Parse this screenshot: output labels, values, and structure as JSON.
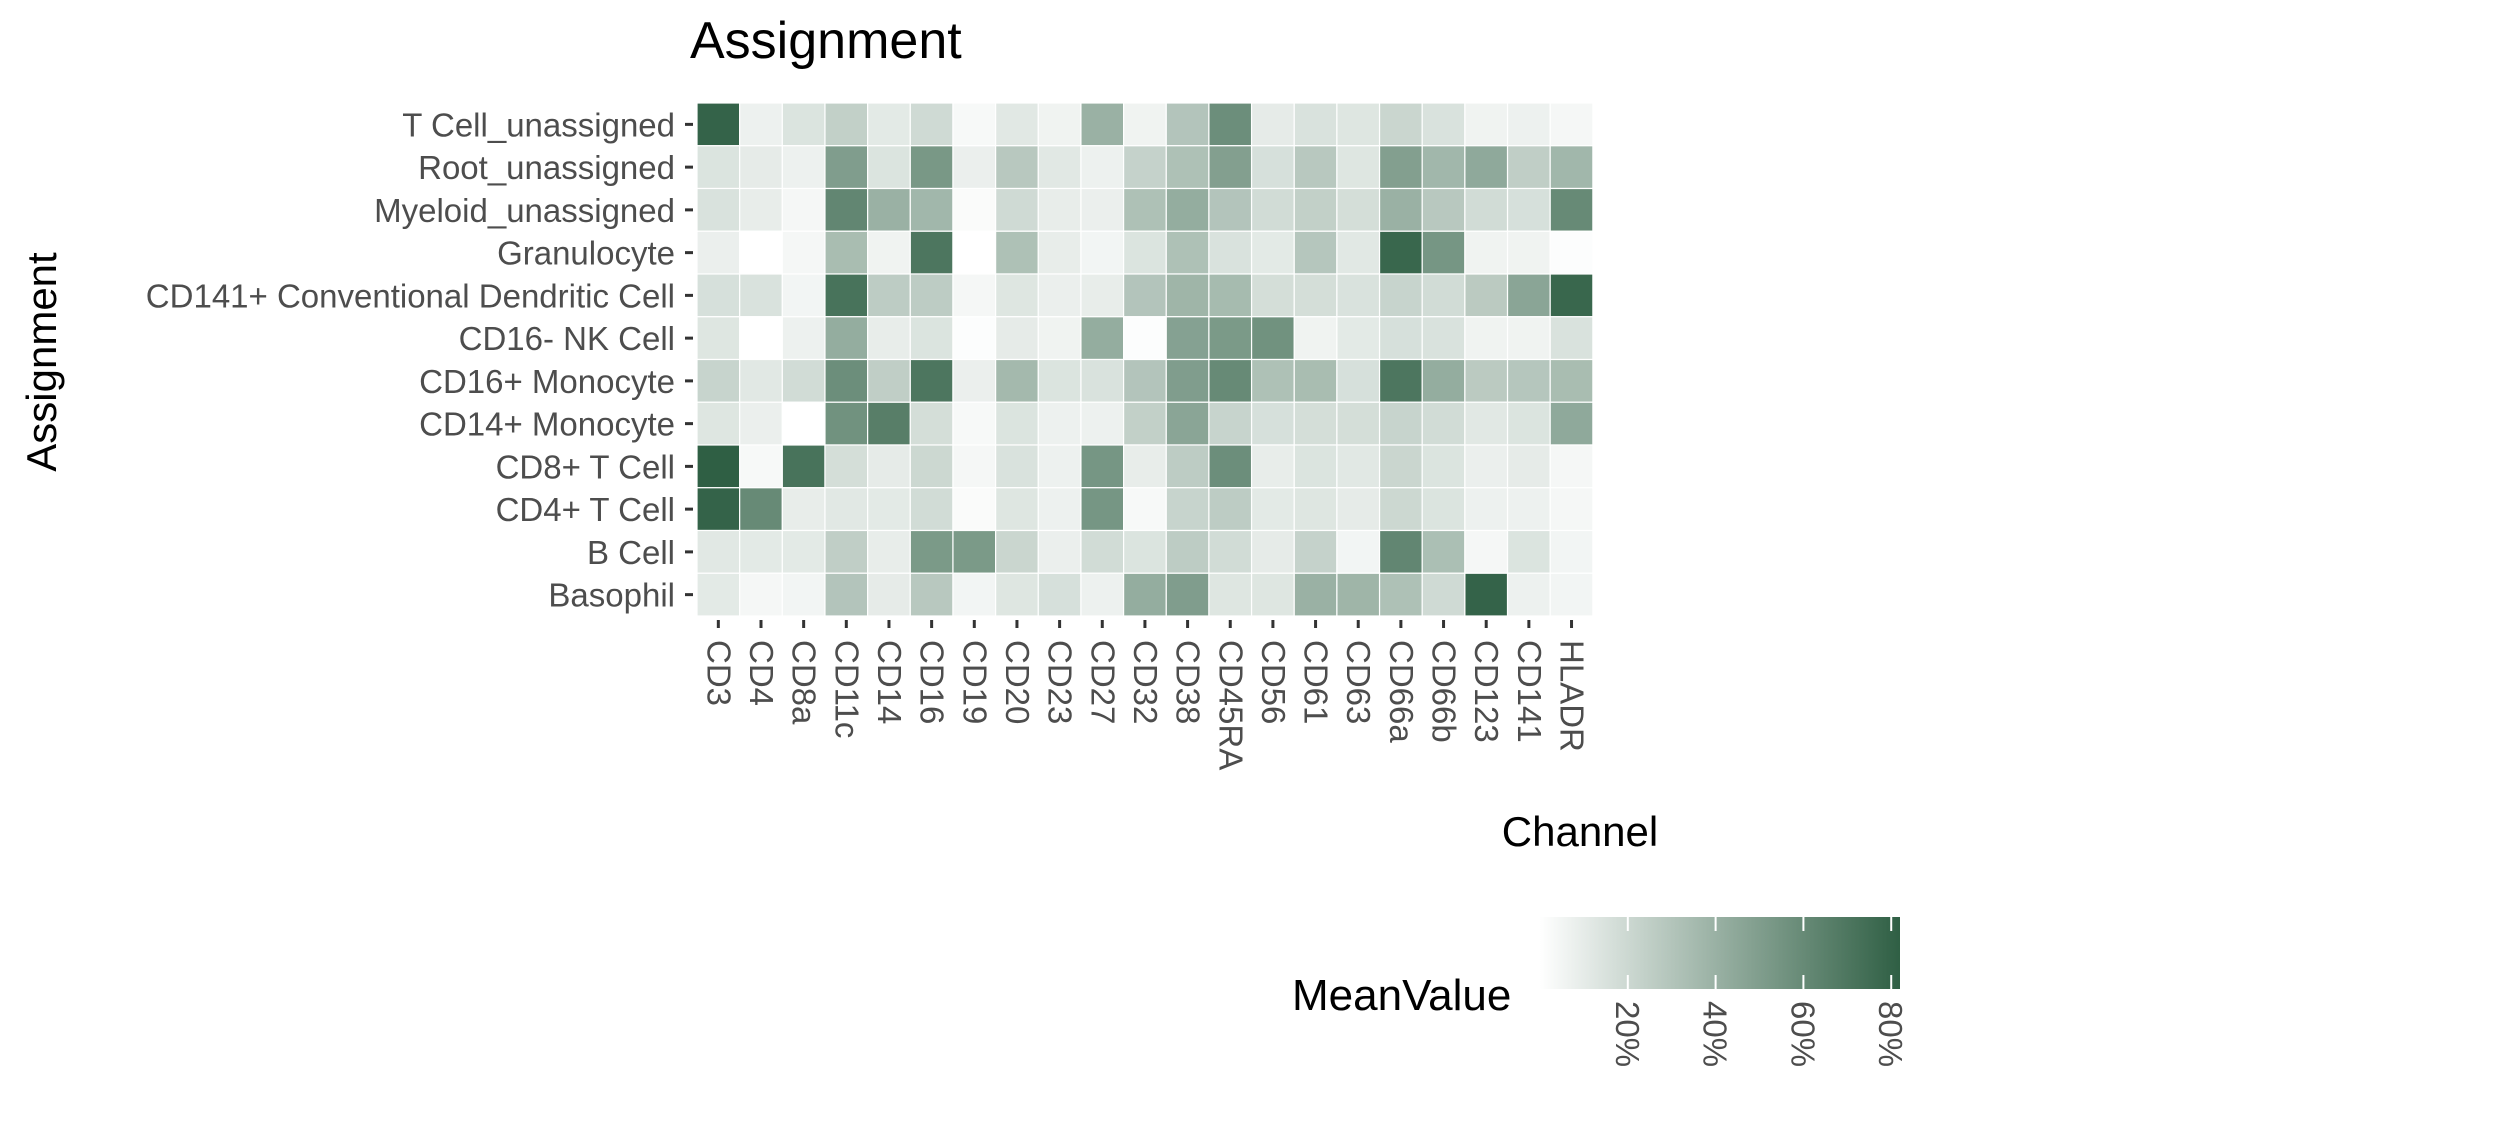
{
  "chart_data": {
    "type": "heatmap",
    "title": "Assignment",
    "xlabel": "Channel",
    "ylabel": "Assignment",
    "legend": {
      "title": "MeanValue",
      "placement": "bottom",
      "ticks": [
        0.2,
        0.4,
        0.6,
        0.8
      ],
      "tick_labels": [
        "20%",
        "40%",
        "60%",
        "80%"
      ],
      "range": [
        0.0,
        0.82
      ],
      "low_color": "#ffffff",
      "high_color": "#2f5f44"
    },
    "x": [
      "CD3",
      "CD4",
      "CD8a",
      "CD11c",
      "CD14",
      "CD16",
      "CD19",
      "CD20",
      "CD23",
      "CD27",
      "CD32",
      "CD38",
      "CD45RA",
      "CD56",
      "CD61",
      "CD63",
      "CD66a",
      "CD66b",
      "CD123",
      "CD141",
      "HLADR"
    ],
    "y": [
      "T Cell_unassigned",
      "Root_unassigned",
      "Myeloid_unassigned",
      "Granulocyte",
      "CD141+ Conventional Dendritic Cell",
      "CD16- NK Cell",
      "CD16+ Monocyte",
      "CD14+ Monocyte",
      "CD8+ T Cell",
      "CD4+ T Cell",
      "B Cell",
      "Basophil"
    ],
    "values": [
      [
        0.8,
        0.07,
        0.14,
        0.24,
        0.11,
        0.19,
        0.03,
        0.12,
        0.06,
        0.4,
        0.06,
        0.3,
        0.58,
        0.1,
        0.15,
        0.13,
        0.21,
        0.15,
        0.06,
        0.07,
        0.04
      ],
      [
        0.14,
        0.1,
        0.07,
        0.5,
        0.14,
        0.53,
        0.08,
        0.28,
        0.12,
        0.07,
        0.23,
        0.32,
        0.49,
        0.16,
        0.28,
        0.13,
        0.49,
        0.37,
        0.44,
        0.25,
        0.37
      ],
      [
        0.15,
        0.09,
        0.04,
        0.62,
        0.4,
        0.37,
        0.02,
        0.19,
        0.09,
        0.08,
        0.32,
        0.42,
        0.3,
        0.18,
        0.24,
        0.17,
        0.4,
        0.28,
        0.18,
        0.16,
        0.6
      ],
      [
        0.08,
        0.0,
        0.04,
        0.34,
        0.06,
        0.7,
        0.0,
        0.32,
        0.09,
        0.05,
        0.14,
        0.32,
        0.15,
        0.11,
        0.29,
        0.12,
        0.78,
        0.54,
        0.06,
        0.06,
        0.01
      ],
      [
        0.16,
        0.15,
        0.05,
        0.72,
        0.26,
        0.26,
        0.04,
        0.13,
        0.08,
        0.09,
        0.3,
        0.38,
        0.35,
        0.17,
        0.17,
        0.15,
        0.22,
        0.18,
        0.27,
        0.46,
        0.78
      ],
      [
        0.13,
        0.0,
        0.07,
        0.42,
        0.09,
        0.14,
        0.01,
        0.1,
        0.06,
        0.42,
        0.01,
        0.48,
        0.52,
        0.56,
        0.06,
        0.11,
        0.16,
        0.15,
        0.06,
        0.06,
        0.15
      ],
      [
        0.22,
        0.12,
        0.18,
        0.58,
        0.25,
        0.7,
        0.08,
        0.36,
        0.14,
        0.15,
        0.3,
        0.5,
        0.6,
        0.32,
        0.34,
        0.16,
        0.7,
        0.42,
        0.27,
        0.29,
        0.34
      ],
      [
        0.13,
        0.08,
        0.0,
        0.56,
        0.66,
        0.17,
        0.03,
        0.14,
        0.07,
        0.07,
        0.24,
        0.46,
        0.22,
        0.16,
        0.17,
        0.17,
        0.22,
        0.18,
        0.12,
        0.14,
        0.44
      ],
      [
        0.82,
        0.03,
        0.72,
        0.17,
        0.1,
        0.2,
        0.04,
        0.15,
        0.07,
        0.54,
        0.09,
        0.26,
        0.58,
        0.09,
        0.14,
        0.12,
        0.21,
        0.14,
        0.08,
        0.1,
        0.04
      ],
      [
        0.8,
        0.6,
        0.09,
        0.12,
        0.11,
        0.18,
        0.02,
        0.13,
        0.07,
        0.54,
        0.03,
        0.22,
        0.26,
        0.11,
        0.13,
        0.1,
        0.2,
        0.14,
        0.07,
        0.07,
        0.04
      ],
      [
        0.12,
        0.11,
        0.11,
        0.25,
        0.09,
        0.52,
        0.52,
        0.21,
        0.08,
        0.18,
        0.14,
        0.26,
        0.18,
        0.1,
        0.23,
        0.05,
        0.62,
        0.33,
        0.04,
        0.14,
        0.05
      ],
      [
        0.11,
        0.04,
        0.05,
        0.3,
        0.1,
        0.28,
        0.05,
        0.13,
        0.16,
        0.07,
        0.42,
        0.5,
        0.13,
        0.13,
        0.4,
        0.38,
        0.32,
        0.19,
        0.8,
        0.07,
        0.05
      ]
    ]
  }
}
